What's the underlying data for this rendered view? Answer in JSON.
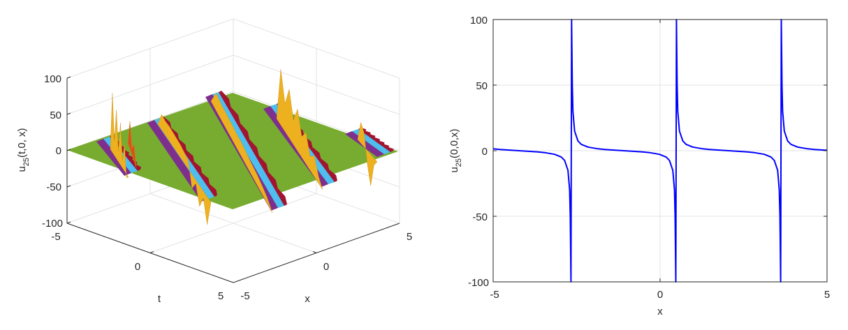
{
  "chart_data": [
    {
      "type": "surface",
      "title": "",
      "xlabel": "x",
      "ylabel": "t",
      "zlabel": {
        "base": "u",
        "sub": "25",
        "rest": "(t,0, x)"
      },
      "xlim": [
        -5,
        5
      ],
      "ylim": [
        -5,
        5
      ],
      "zlim": [
        -100,
        100
      ],
      "x_ticks": [
        "-5",
        "0",
        "5"
      ],
      "t_ticks": [
        "-5",
        "0",
        "5"
      ],
      "z_ticks": [
        "100",
        "50",
        "0",
        "-50",
        "-100"
      ],
      "grid": true,
      "colors": {
        "plane": "#77ac30",
        "low": "#7e2f8e",
        "mid": "#4dbeee",
        "high": "#edb120",
        "peak": "#d95319",
        "dark": "#a2142f"
      }
    },
    {
      "type": "line",
      "title": "",
      "xlabel": "x",
      "ylabel": {
        "base": "u",
        "sub": "25",
        "rest": "(0,0,x)"
      },
      "xlim": [
        -5,
        5
      ],
      "ylim": [
        -100,
        100
      ],
      "x_ticks": [
        "-5",
        "0",
        "5"
      ],
      "y_ticks": [
        "100",
        "50",
        "0",
        "-50",
        "-100"
      ],
      "grid": true,
      "series": [
        {
          "name": "u25(0,0,x)",
          "color": "#0000ff",
          "x": [
            -5,
            -4.8,
            -4.6,
            -4.23,
            -3.86,
            -3.66,
            -3.46,
            -3.16,
            -2.96,
            -2.86,
            -2.76,
            -2.71,
            -2.69,
            -2.68,
            -2.67,
            -2.65,
            -2.64,
            -2.63,
            -2.61,
            -2.56,
            -2.46,
            -2.36,
            -2.16,
            -1.86,
            -1.66,
            -1.46,
            -1.09,
            -0.72,
            -0.52,
            -0.32,
            -0.02,
            0.18,
            0.28,
            0.38,
            0.43,
            0.45,
            0.46,
            0.47,
            0.49,
            0.5,
            0.51,
            0.53,
            0.58,
            0.68,
            0.78,
            0.98,
            1.28,
            1.48,
            1.68,
            2.05,
            2.42,
            2.62,
            2.82,
            3.12,
            3.32,
            3.42,
            3.52,
            3.57,
            3.59,
            3.6,
            3.61,
            3.63,
            3.64,
            3.65,
            3.67,
            3.72,
            3.82,
            3.92,
            4.12,
            4.42,
            4.62,
            4.82,
            5
          ],
          "y": [
            1.45,
            0.96,
            0.58,
            0,
            -0.58,
            -0.96,
            -1.45,
            -2.75,
            -4.85,
            -7.4,
            -15,
            -30,
            -50,
            -75,
            -100,
            100,
            75,
            50,
            30,
            15,
            7.4,
            4.85,
            2.75,
            1.45,
            0.96,
            0.58,
            0,
            -0.58,
            -0.96,
            -1.45,
            -2.75,
            -4.85,
            -7.4,
            -15,
            -30,
            -50,
            -75,
            -100,
            100,
            75,
            50,
            30,
            15,
            7.4,
            4.85,
            2.75,
            1.45,
            0.96,
            0.58,
            0,
            -0.58,
            -0.96,
            -1.45,
            -2.75,
            -4.85,
            -7.4,
            -15,
            -30,
            -50,
            -75,
            -100,
            100,
            75,
            50,
            30,
            15,
            7.4,
            4.85,
            2.75,
            1.45,
            0.96,
            0.58,
            0.3
          ]
        }
      ]
    }
  ]
}
